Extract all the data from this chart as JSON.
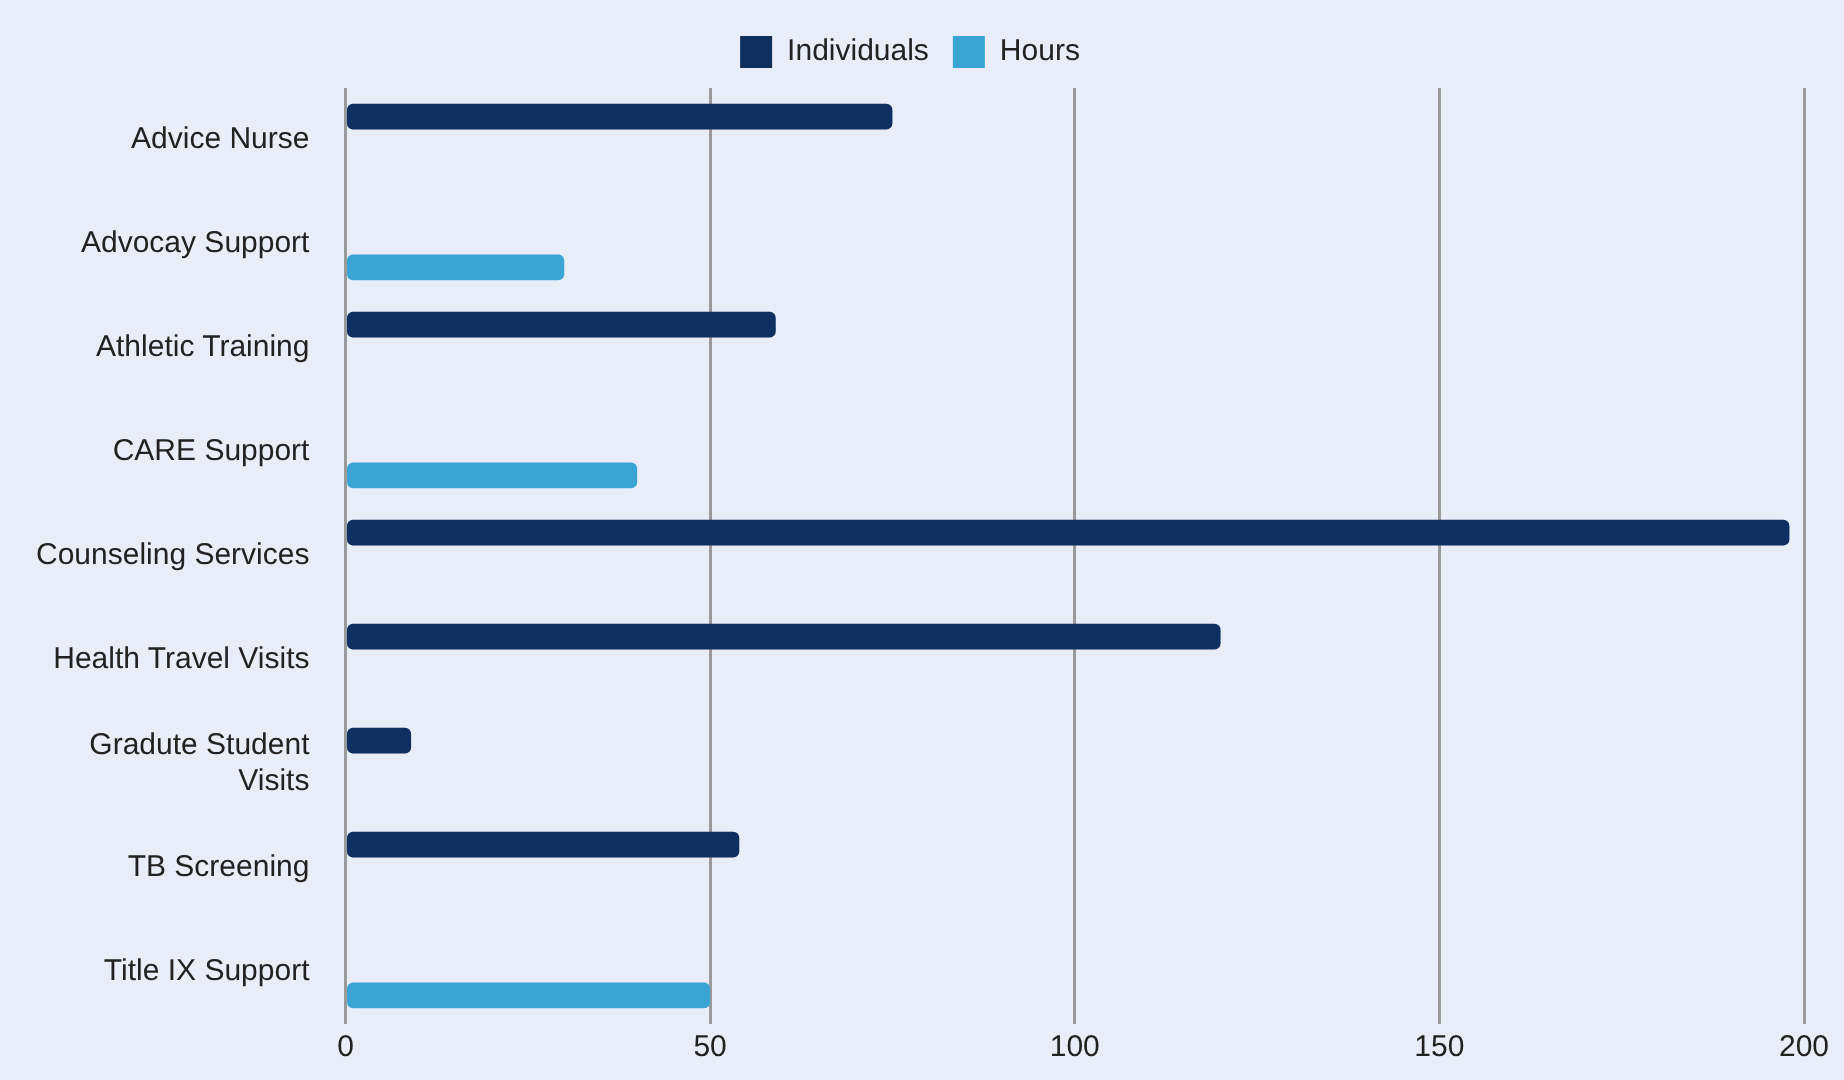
{
  "chart_data": {
    "type": "bar",
    "orientation": "horizontal",
    "categories": [
      "Advice Nurse",
      "Advocay Support",
      "Athletic Training",
      "CARE Support",
      "Counseling Services",
      "Health Travel Visits",
      "Gradute Student Visits",
      "TB Screening",
      "Title IX Support"
    ],
    "series": [
      {
        "name": "Individuals",
        "color": "#0e2f5f",
        "values": [
          75,
          null,
          59,
          null,
          198,
          120,
          9,
          54,
          null
        ]
      },
      {
        "name": "Hours",
        "color": "#3aa5d4",
        "values": [
          null,
          30,
          null,
          40,
          null,
          null,
          null,
          null,
          50
        ]
      }
    ],
    "xlim": [
      0,
      200
    ],
    "xticks": [
      0,
      50,
      100,
      150,
      200
    ],
    "grid": "x",
    "legend": "top"
  }
}
